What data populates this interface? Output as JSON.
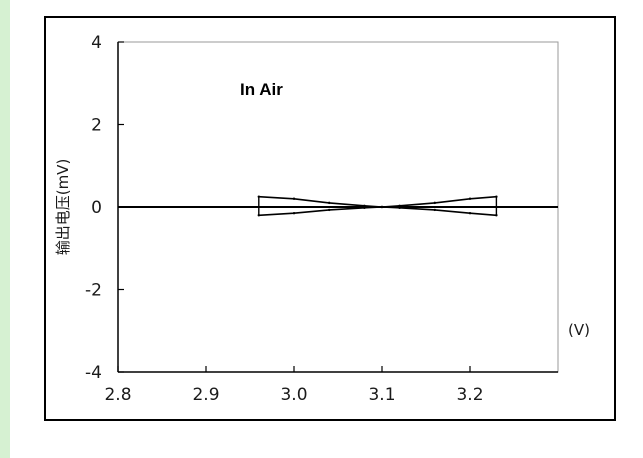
{
  "chart_data": {
    "type": "line",
    "annotation": "In Air",
    "ylabel": "输出电压(mV)",
    "xunit": "(V)",
    "xlim": [
      2.8,
      3.3
    ],
    "ylim": [
      -4,
      4
    ],
    "x_ticks": [
      "2.8",
      "2.9",
      "3.0",
      "3.1",
      "3.2"
    ],
    "y_ticks": [
      "4",
      "2",
      "0",
      "-2",
      "-4"
    ],
    "grid": false,
    "series": [
      {
        "style": "zero-line",
        "x": [
          2.8,
          3.3
        ],
        "y": [
          0,
          0
        ]
      },
      {
        "style": "band-upper",
        "x": [
          2.96,
          3.0,
          3.04,
          3.08,
          3.1,
          3.12,
          3.16,
          3.2,
          3.23
        ],
        "y": [
          0.25,
          0.2,
          0.1,
          0.03,
          0,
          0.03,
          0.1,
          0.2,
          0.25
        ]
      },
      {
        "style": "band-lower",
        "x": [
          2.96,
          3.0,
          3.04,
          3.08,
          3.1,
          3.12,
          3.16,
          3.2,
          3.23
        ],
        "y": [
          -0.2,
          -0.15,
          -0.07,
          -0.02,
          0,
          -0.02,
          -0.07,
          -0.15,
          -0.2
        ]
      }
    ],
    "colors": {
      "axis": "#000000",
      "trace": "#000000",
      "tick": "#1a1a1a"
    }
  }
}
